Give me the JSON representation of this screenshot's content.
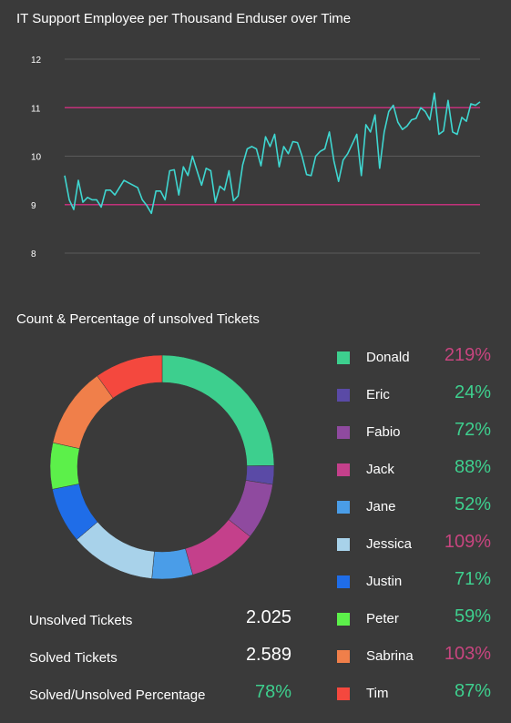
{
  "charts": {
    "line_title": "IT Support Employee per Thousand Enduser over Time",
    "donut_title": "Count & Percentage of unsolved Tickets"
  },
  "colors": {
    "background": "#3a3a3a",
    "line": "#3fd6d0",
    "threshold": "#c2317a",
    "grid": "#5a5a5a",
    "good": "#3ecf8e",
    "bad": "#c8457f"
  },
  "chart_data": [
    {
      "type": "line",
      "title": "IT Support Employee per Thousand Enduser over Time",
      "xlabel": "",
      "ylabel": "",
      "ylim": [
        8,
        12
      ],
      "yticks": [
        "12",
        "11",
        "10",
        "9",
        "8"
      ],
      "grid": true,
      "thresholds": [
        11,
        9
      ],
      "series": [
        {
          "values": [
            9.6,
            9.1,
            8.9,
            9.5,
            9.05,
            9.15,
            9.1,
            9.1,
            8.95,
            9.3,
            9.3,
            9.2,
            9.35,
            9.5,
            9.45,
            9.4,
            9.35,
            9.1,
            8.98,
            8.82,
            9.28,
            9.28,
            9.1,
            9.7,
            9.72,
            9.2,
            9.78,
            9.6,
            10.0,
            9.7,
            9.4,
            9.75,
            9.7,
            9.05,
            9.38,
            9.3,
            9.7,
            9.08,
            9.18,
            9.82,
            10.15,
            10.2,
            10.15,
            9.8,
            10.4,
            10.2,
            10.45,
            9.78,
            10.2,
            10.05,
            10.3,
            10.28,
            10.0,
            9.62,
            9.6,
            10.0,
            10.1,
            10.15,
            10.5,
            9.9,
            9.48,
            9.92,
            10.05,
            10.25,
            10.45,
            9.6,
            10.65,
            10.5,
            10.85,
            9.75,
            10.5,
            10.92,
            11.05,
            10.7,
            10.55,
            10.62,
            10.75,
            10.78,
            11.0,
            10.92,
            10.75,
            11.3,
            10.45,
            10.52,
            11.15,
            10.5,
            10.45,
            10.8,
            10.72,
            11.08,
            11.05,
            11.12
          ]
        }
      ]
    },
    {
      "type": "pie",
      "title": "Count & Percentage of unsolved Tickets",
      "donut": true,
      "categories": [
        "Donald",
        "Eric",
        "Fabio",
        "Jack",
        "Jane",
        "Jessica",
        "Justin",
        "Peter",
        "Sabrina",
        "Tim"
      ],
      "values": [
        219,
        24,
        72,
        88,
        52,
        109,
        71,
        59,
        103,
        87
      ],
      "labels": [
        "219%",
        "24%",
        "72%",
        "88%",
        "52%",
        "109%",
        "71%",
        "59%",
        "103%",
        "87%"
      ],
      "colors": [
        "#3dcf8e",
        "#5a4aa6",
        "#8f4a9f",
        "#c4408b",
        "#4a9de8",
        "#a8d2ea",
        "#1f6de8",
        "#5cf04a",
        "#f07f4a",
        "#f4483e"
      ],
      "label_colors": [
        "#c8457f",
        "#3ecf8e",
        "#3ecf8e",
        "#3ecf8e",
        "#3ecf8e",
        "#c8457f",
        "#3ecf8e",
        "#3ecf8e",
        "#c8457f",
        "#3ecf8e"
      ]
    }
  ],
  "stats": [
    {
      "label": "Unsolved Tickets",
      "value": "2.025",
      "color": "#ffffff"
    },
    {
      "label": "Solved Tickets",
      "value": "2.589",
      "color": "#ffffff"
    },
    {
      "label": "Solved/Unsolved Percentage",
      "value": "78%",
      "color": "#3ecf8e"
    }
  ]
}
